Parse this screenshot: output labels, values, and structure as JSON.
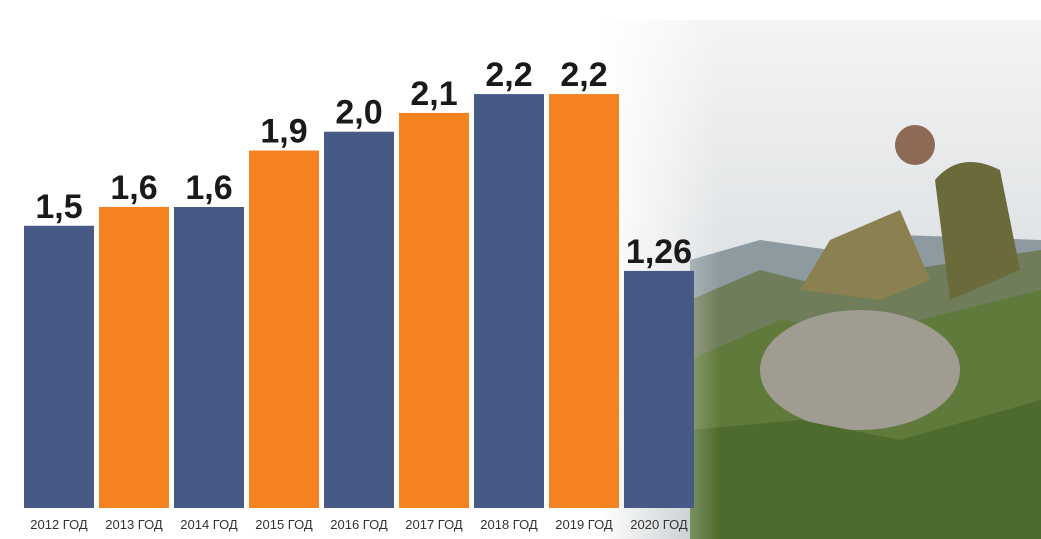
{
  "chart_data": {
    "type": "bar",
    "categories": [
      "2012 ГОД",
      "2013 ГОД",
      "2014 ГОД",
      "2015 ГОД",
      "2016 ГОД",
      "2017 ГОД",
      "2018 ГОД",
      "2019 ГОД",
      "2020 ГОД"
    ],
    "values": [
      1.5,
      1.6,
      1.6,
      1.9,
      2.0,
      2.1,
      2.2,
      2.2,
      1.26
    ],
    "value_labels": [
      "1,5",
      "1,6",
      "1,6",
      "1,9",
      "2,0",
      "2,1",
      "2,2",
      "2,2",
      "1,26"
    ],
    "colors": [
      "#475a85",
      "#f58220",
      "#475a85",
      "#f58220",
      "#475a85",
      "#f58220",
      "#475a85",
      "#f58220",
      "#475a85"
    ],
    "ylim": [
      0,
      2.7
    ]
  }
}
